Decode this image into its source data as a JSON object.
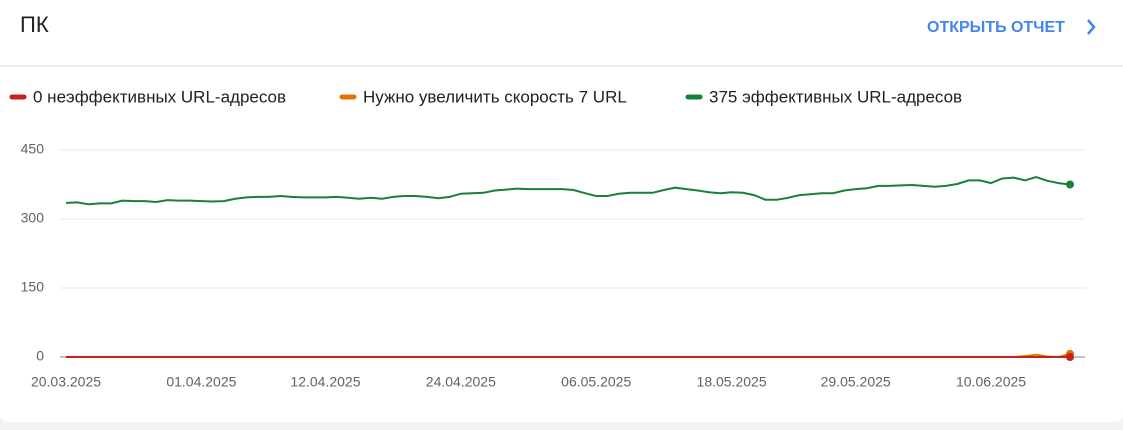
{
  "header": {
    "title": "ПК",
    "action": "ОТКРЫТЬ ОТЧЕТ"
  },
  "chart_data": {
    "type": "line",
    "categories": [
      "20.03.2025",
      null,
      null,
      null,
      null,
      null,
      null,
      null,
      null,
      null,
      null,
      null,
      "01.04.2025",
      null,
      null,
      null,
      null,
      null,
      null,
      null,
      null,
      null,
      null,
      "12.04.2025",
      null,
      null,
      null,
      null,
      null,
      null,
      null,
      null,
      null,
      null,
      null,
      "24.04.2025",
      null,
      null,
      null,
      null,
      null,
      null,
      null,
      null,
      null,
      null,
      null,
      "06.05.2025",
      null,
      null,
      null,
      null,
      null,
      null,
      null,
      null,
      null,
      null,
      null,
      "18.05.2025",
      null,
      null,
      null,
      null,
      null,
      null,
      null,
      null,
      null,
      null,
      "29.05.2025",
      null,
      null,
      null,
      null,
      null,
      null,
      null,
      null,
      null,
      null,
      null,
      "10.06.2025",
      null,
      null,
      null,
      null,
      null,
      null,
      null
    ],
    "series": [
      {
        "name": "0 неэффективных URL-адресов",
        "color": "#c5221f",
        "values": [
          0,
          0,
          0,
          0,
          0,
          0,
          0,
          0,
          0,
          0,
          0,
          0,
          0,
          0,
          0,
          0,
          0,
          0,
          0,
          0,
          0,
          0,
          0,
          0,
          0,
          0,
          0,
          0,
          0,
          0,
          0,
          0,
          0,
          0,
          0,
          0,
          0,
          0,
          0,
          0,
          0,
          0,
          0,
          0,
          0,
          0,
          0,
          0,
          0,
          0,
          0,
          0,
          0,
          0,
          0,
          0,
          0,
          0,
          0,
          0,
          0,
          0,
          0,
          0,
          0,
          0,
          0,
          0,
          0,
          0,
          0,
          0,
          0,
          0,
          0,
          0,
          0,
          0,
          0,
          0,
          0,
          0,
          0,
          0,
          0,
          0,
          0,
          0,
          0,
          0
        ]
      },
      {
        "name": "Нужно увеличить скорость 7 URL",
        "color": "#e37400",
        "values": [
          0,
          0,
          0,
          0,
          0,
          0,
          0,
          0,
          0,
          0,
          0,
          0,
          0,
          0,
          0,
          0,
          0,
          0,
          0,
          0,
          0,
          0,
          0,
          0,
          0,
          0,
          0,
          0,
          0,
          0,
          0,
          0,
          0,
          0,
          0,
          0,
          0,
          0,
          0,
          0,
          0,
          0,
          0,
          0,
          0,
          0,
          0,
          0,
          0,
          0,
          0,
          0,
          0,
          0,
          0,
          0,
          0,
          0,
          0,
          0,
          0,
          0,
          0,
          0,
          0,
          0,
          0,
          0,
          0,
          0,
          0,
          0,
          0,
          0,
          0,
          0,
          0,
          0,
          0,
          0,
          0,
          0,
          0,
          0,
          0,
          2,
          5,
          1,
          0,
          7
        ]
      },
      {
        "name": "375 эффективных URL-адресов",
        "color": "#188038",
        "values": [
          335,
          336,
          332,
          334,
          334,
          340,
          339,
          339,
          337,
          341,
          340,
          340,
          339,
          338,
          339,
          344,
          347,
          348,
          348,
          350,
          348,
          347,
          347,
          347,
          348,
          346,
          344,
          346,
          344,
          348,
          350,
          350,
          348,
          345,
          348,
          355,
          356,
          357,
          362,
          364,
          366,
          365,
          365,
          365,
          365,
          363,
          356,
          350,
          350,
          355,
          357,
          357,
          357,
          363,
          368,
          365,
          362,
          358,
          356,
          358,
          357,
          352,
          342,
          342,
          346,
          352,
          354,
          356,
          356,
          362,
          365,
          367,
          372,
          372,
          373,
          374,
          372,
          370,
          372,
          376,
          384,
          384,
          378,
          388,
          390,
          384,
          391,
          383,
          378,
          375
        ]
      }
    ],
    "ylim": [
      0,
      450
    ],
    "yticks": [
      0,
      150,
      300,
      450
    ],
    "grid": true
  }
}
